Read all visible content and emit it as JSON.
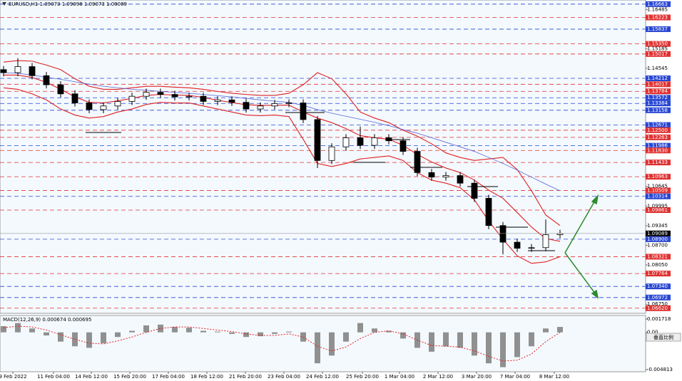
{
  "chart_data": [
    {
      "type": "candlestick",
      "title": "EURUSD,H1  1.09073 1.09098 1.09073 1.09089",
      "xlim": [
        -0.25,
        45
      ],
      "ylim": [
        1.0645,
        1.168
      ],
      "open": [
        1.145,
        1.144,
        1.146,
        1.143,
        1.14,
        1.137,
        1.134,
        1.1318,
        1.133,
        1.1345,
        1.1362,
        1.1375,
        1.1368,
        1.136,
        1.1362,
        1.1345,
        1.135,
        1.1342,
        1.132,
        1.133,
        1.1338,
        1.134,
        1.1285,
        1.115,
        1.1195,
        1.1225,
        1.12,
        1.1225,
        1.1215,
        1.118,
        1.111,
        1.1095,
        1.11,
        1.1075,
        1.1025,
        1.0935,
        1.088,
        1.086,
        1.0862,
        1.0905
      ],
      "high": [
        1.1462,
        1.1488,
        1.1472,
        1.1442,
        1.1412,
        1.1382,
        1.1352,
        1.1342,
        1.1357,
        1.1374,
        1.1387,
        1.1387,
        1.138,
        1.1374,
        1.1374,
        1.1362,
        1.1362,
        1.1354,
        1.1342,
        1.135,
        1.1352,
        1.1352,
        1.1297,
        1.1207,
        1.1237,
        1.1262,
        1.1237,
        1.1237,
        1.1227,
        1.1192,
        1.1122,
        1.1112,
        1.1112,
        1.1087,
        1.1037,
        1.0947,
        1.0892,
        1.0874,
        1.0955,
        1.0921
      ],
      "low": [
        1.1428,
        1.1428,
        1.1418,
        1.1388,
        1.1358,
        1.1328,
        1.1306,
        1.1306,
        1.1318,
        1.1333,
        1.135,
        1.1356,
        1.1348,
        1.1348,
        1.1333,
        1.1333,
        1.133,
        1.1308,
        1.1308,
        1.1318,
        1.1326,
        1.1273,
        1.1125,
        1.1138,
        1.1183,
        1.1188,
        1.1188,
        1.1203,
        1.1168,
        1.1098,
        1.1083,
        1.1083,
        1.1063,
        1.1013,
        1.0923,
        1.084,
        1.0848,
        1.0848,
        1.085,
        1.0893
      ],
      "close": [
        1.144,
        1.146,
        1.143,
        1.14,
        1.137,
        1.134,
        1.1318,
        1.133,
        1.1345,
        1.1362,
        1.1375,
        1.1368,
        1.136,
        1.1362,
        1.1345,
        1.135,
        1.1342,
        1.132,
        1.133,
        1.1338,
        1.134,
        1.1285,
        1.115,
        1.1195,
        1.1225,
        1.12,
        1.1225,
        1.1215,
        1.118,
        1.111,
        1.1095,
        1.11,
        1.1075,
        1.1025,
        1.0935,
        1.088,
        1.086,
        1.0862,
        1.0905,
        1.0909
      ],
      "series": [
        {
          "color": "#e02020",
          "values": [
            1.1475,
            1.148,
            1.1478,
            1.1465,
            1.145,
            1.142,
            1.1395,
            1.1385,
            1.1385,
            1.139,
            1.1395,
            1.1395,
            1.1392,
            1.139,
            1.1385,
            1.1378,
            1.1372,
            1.1368,
            1.1365,
            1.1365,
            1.1372,
            1.14,
            1.144,
            1.142,
            1.137,
            1.131,
            1.129,
            1.1275,
            1.125,
            1.123,
            1.1205,
            1.1175,
            1.116,
            1.115,
            1.1155,
            1.116,
            1.112,
            1.105,
            1.097,
            1.0935
          ]
        },
        {
          "color": "#e02020",
          "values": [
            1.1432,
            1.1432,
            1.1424,
            1.1408,
            1.1385,
            1.136,
            1.1342,
            1.134,
            1.1347,
            1.1355,
            1.1365,
            1.1368,
            1.1366,
            1.1365,
            1.1358,
            1.1349,
            1.1341,
            1.1334,
            1.1332,
            1.1332,
            1.1333,
            1.131,
            1.129,
            1.1275,
            1.1255,
            1.1232,
            1.1225,
            1.122,
            1.12,
            1.117,
            1.1145,
            1.1125,
            1.111,
            1.1085,
            1.1052,
            1.1025,
            1.0978,
            1.093,
            1.0892,
            1.0883
          ]
        },
        {
          "color": "#e02020",
          "values": [
            1.139,
            1.1385,
            1.137,
            1.135,
            1.132,
            1.13,
            1.129,
            1.1295,
            1.131,
            1.132,
            1.1335,
            1.1342,
            1.134,
            1.134,
            1.133,
            1.132,
            1.131,
            1.13,
            1.1298,
            1.13,
            1.1295,
            1.122,
            1.114,
            1.113,
            1.114,
            1.1155,
            1.116,
            1.1165,
            1.115,
            1.111,
            1.1085,
            1.1075,
            1.106,
            1.102,
            1.095,
            1.089,
            1.0835,
            1.081,
            1.0815,
            1.0832
          ]
        },
        {
          "color": "#5868d8",
          "values": [
            1.144,
            1.1438,
            1.1432,
            1.1425,
            1.1418,
            1.141,
            1.1402,
            1.1395,
            1.139,
            1.1385,
            1.1382,
            1.1378,
            1.1375,
            1.1372,
            1.1368,
            1.1364,
            1.136,
            1.1355,
            1.135,
            1.1346,
            1.1342,
            1.1332,
            1.1318,
            1.1306,
            1.1296,
            1.1286,
            1.1276,
            1.1265,
            1.1252,
            1.124,
            1.1225,
            1.121,
            1.1195,
            1.118,
            1.116,
            1.114,
            1.1118,
            1.1095,
            1.1072,
            1.105
          ]
        }
      ],
      "yticks": [
        1.16485,
        1.15185,
        1.14545,
        1.10645,
        1.09995,
        1.09345,
        {
          "value": 1.087,
          "label": "1.08700"
        },
        {
          "value": 1.0805,
          "label": "1.08050"
        },
        {
          "value": 1.0675,
          "label": "1.06750"
        }
      ],
      "levels": [
        {
          "value": 1.16663,
          "color": "#2846d2"
        },
        {
          "value": 1.16223,
          "color": "#e03030"
        },
        {
          "value": 1.15837,
          "color": "#2846d2"
        },
        {
          "value": 1.1535,
          "label": "1.15350",
          "color": "#e03030"
        },
        {
          "value": 1.15017,
          "color": "#e03030"
        },
        {
          "value": 1.14212,
          "color": "#2846d2"
        },
        {
          "value": 1.14017,
          "color": "#e03030"
        },
        {
          "value": 1.13784,
          "color": "#e03030"
        },
        {
          "value": 1.13572,
          "color": "#2846d2"
        },
        {
          "value": 1.13384,
          "color": "#2846d2"
        },
        {
          "value": 1.13158,
          "color": "#2846d2"
        },
        {
          "value": 1.12671,
          "color": "#2846d2"
        },
        {
          "value": 1.125,
          "label": "1.12500",
          "color": "#e03030"
        },
        {
          "value": 1.12263,
          "color": "#e03030"
        },
        {
          "value": 1.11986,
          "color": "#2846d2"
        },
        {
          "value": 1.1183,
          "label": "1.11830",
          "color": "#e03030"
        },
        {
          "value": 1.11433,
          "color": "#e03030"
        },
        {
          "value": 1.10963,
          "color": "#e03030"
        },
        {
          "value": 1.10509,
          "color": "#e03030"
        },
        {
          "value": 1.10314,
          "color": "#2846d2"
        },
        {
          "value": 1.09861,
          "color": "#e03030"
        },
        {
          "value": 1.089,
          "label": "1.08900",
          "color": "#2846d2"
        },
        {
          "value": 1.08321,
          "color": "#e03030"
        },
        {
          "value": 1.07764,
          "color": "#e03030"
        },
        {
          "value": 1.0734,
          "label": "1.07340",
          "color": "#2846d2"
        },
        {
          "value": 1.06972,
          "color": "#2846d2"
        },
        {
          "value": 1.0662,
          "label": "1.06620",
          "color": "#e03030"
        }
      ],
      "current_price": {
        "value": 1.09089,
        "color": "#000000"
      }
    },
    {
      "type": "bar",
      "title": "MACD(12,26,9) 0.000674 0.000695",
      "xlim": [
        -0.25,
        45
      ],
      "ylim": [
        -0.004813,
        0.001718
      ],
      "yticks": [
        0.001718,
        {
          "value": 0,
          "label": "0.00"
        },
        -0.004813
      ],
      "scale_button": "垂直比例",
      "series": [
        {
          "color": "#909090",
          "values": [
            0.0008,
            0.0012,
            0.0005,
            -0.0004,
            -0.0012,
            -0.0018,
            -0.002,
            -0.0014,
            -0.0006,
            0.0002,
            0.0009,
            0.001,
            0.0007,
            0.0006,
            0.0002,
            0.0001,
            -0.0002,
            -0.0006,
            -0.0005,
            -0.0002,
            0.0001,
            -0.0012,
            -0.004,
            -0.003,
            -0.0012,
            0.0012,
            0.0005,
            0.0002,
            -0.0008,
            -0.002,
            -0.0025,
            -0.0018,
            -0.002,
            -0.003,
            -0.004,
            -0.0045,
            -0.0032,
            -0.0018,
            0.0005,
            0.0007
          ]
        },
        {
          "color": "#e02020",
          "values": [
            0.0006,
            0.0008,
            0.0007,
            0.0003,
            -0.0003,
            -0.0009,
            -0.0014,
            -0.0015,
            -0.0011,
            -0.0006,
            0.0,
            0.0005,
            0.0007,
            0.0007,
            0.0005,
            0.0003,
            0.0001,
            -0.0002,
            -0.0004,
            -0.0004,
            -0.0002,
            -0.0006,
            -0.0018,
            -0.0024,
            -0.0019,
            -0.0008,
            0.0,
            0.0002,
            -0.0002,
            -0.001,
            -0.0017,
            -0.0018,
            -0.0019,
            -0.0024,
            -0.0031,
            -0.0037,
            -0.0036,
            -0.0028,
            -0.0012,
            0.0
          ]
        }
      ],
      "xticks": [
        {
          "value": 0.65,
          "label": "9 Feb 2022"
        },
        {
          "value": 3.5,
          "label": "11 Feb 04:00"
        },
        {
          "value": 6.15,
          "label": "14 Feb 12:00"
        },
        {
          "value": 8.85,
          "label": "15 Feb 20:00"
        },
        {
          "value": 11.55,
          "label": "17 Feb 04:00"
        },
        {
          "value": 14.25,
          "label": "18 Feb 12:00"
        },
        {
          "value": 16.95,
          "label": "21 Feb 20:00"
        },
        {
          "value": 19.65,
          "label": "23 Feb 04:00"
        },
        {
          "value": 22.35,
          "label": "24 Feb 12:00"
        },
        {
          "value": 25.15,
          "label": "25 Feb 20:00"
        },
        {
          "value": 27.75,
          "label": "1 Mar 04:00"
        },
        {
          "value": 30.45,
          "label": "2 Mar 12:00"
        },
        {
          "value": 33.15,
          "label": "3 Mar 20:00"
        },
        {
          "value": 35.85,
          "label": "7 Mar 04:00"
        },
        {
          "value": 38.6,
          "label": "8 Mar 12:00"
        }
      ]
    }
  ]
}
